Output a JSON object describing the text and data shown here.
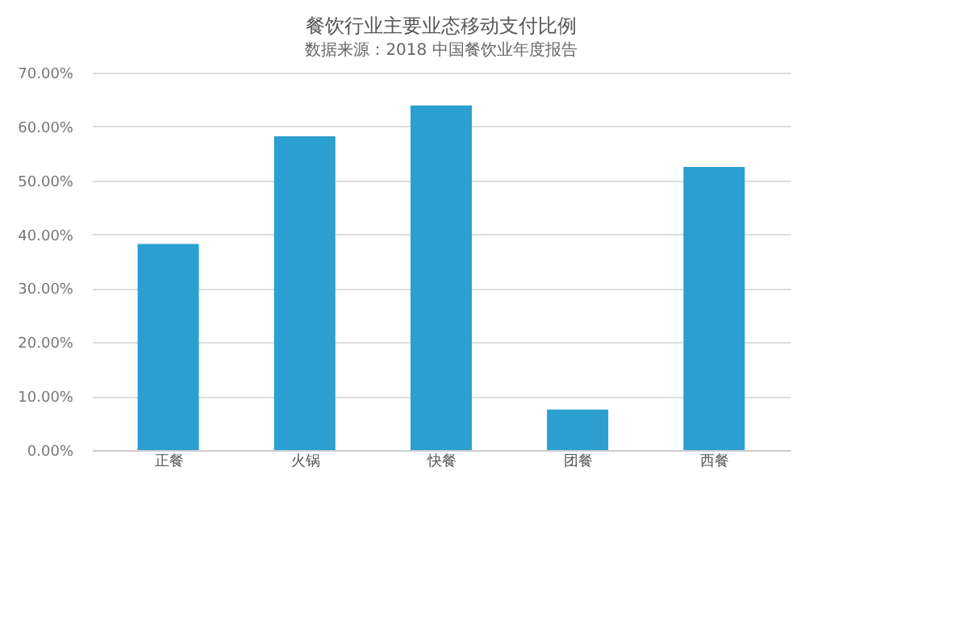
{
  "chart_data": {
    "type": "bar",
    "title": "餐饮行业主要业态移动支付比例",
    "categories": [
      "正餐",
      "火锅",
      "快餐",
      "团餐",
      "西餐"
    ],
    "values": [
      38.2,
      58.2,
      63.9,
      7.5,
      52.5
    ],
    "color": "#2a9fd0",
    "ylim": [
      0,
      70
    ],
    "yticks": [
      {
        "value": 0,
        "label": "0.00%"
      },
      {
        "value": 10,
        "label": "10.00%"
      },
      {
        "value": 20,
        "label": "20.00%"
      },
      {
        "value": 30,
        "label": "30.00%"
      },
      {
        "value": 40,
        "label": "40.00%"
      },
      {
        "value": 50,
        "label": "50.00%"
      },
      {
        "value": 60,
        "label": "60.00%"
      },
      {
        "value": 70,
        "label": "70.00%"
      }
    ],
    "grid": "y",
    "annotations": [
      "数据来源：2018 中国餐饮业年度报告"
    ]
  }
}
